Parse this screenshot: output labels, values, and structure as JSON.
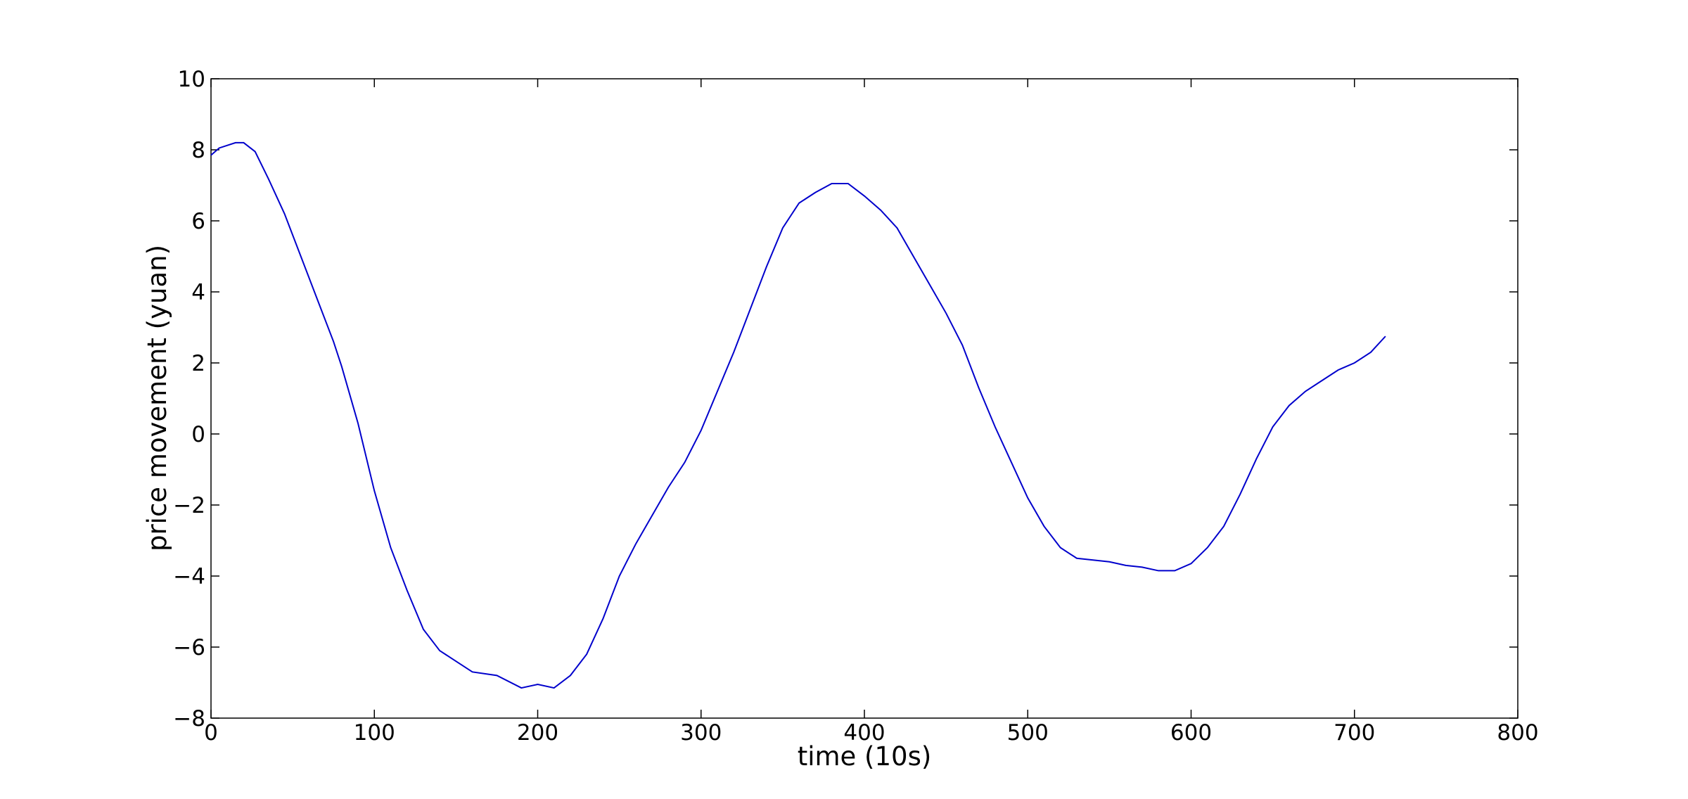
{
  "chart_data": {
    "type": "line",
    "xlabel": "time (10s)",
    "ylabel": "price movement (yuan)",
    "xlim": [
      0,
      800
    ],
    "xticks": [
      0,
      100,
      200,
      300,
      400,
      500,
      600,
      700,
      800
    ],
    "ylim": [
      -8,
      10
    ],
    "yticks": [
      {
        "value": -8,
        "label": "−8"
      },
      {
        "value": -6,
        "label": "−6"
      },
      {
        "value": -4,
        "label": "−4"
      },
      {
        "value": -2,
        "label": "−2"
      },
      0,
      2,
      4,
      6,
      8,
      10
    ],
    "series": [
      {
        "color": "#0000cc",
        "x": [
          0,
          5,
          15,
          20,
          27,
          35,
          45,
          55,
          65,
          75,
          80,
          90,
          100,
          110,
          120,
          130,
          140,
          150,
          160,
          175,
          190,
          200,
          210,
          220,
          230,
          240,
          250,
          260,
          270,
          280,
          290,
          300,
          310,
          320,
          330,
          340,
          350,
          360,
          370,
          380,
          390,
          400,
          410,
          420,
          430,
          440,
          450,
          460,
          470,
          480,
          490,
          500,
          510,
          520,
          530,
          540,
          550,
          560,
          570,
          580,
          590,
          600,
          610,
          620,
          630,
          640,
          650,
          660,
          670,
          680,
          690,
          700,
          710,
          719
        ],
        "values": [
          7.85,
          8.05,
          8.2,
          8.2,
          7.95,
          7.2,
          6.2,
          5.0,
          3.8,
          2.6,
          1.9,
          0.3,
          -1.6,
          -3.2,
          -4.4,
          -5.5,
          -6.1,
          -6.4,
          -6.7,
          -6.8,
          -7.15,
          -7.05,
          -7.15,
          -6.8,
          -6.2,
          -5.2,
          -4.0,
          -3.1,
          -2.3,
          -1.5,
          -0.8,
          0.1,
          1.2,
          2.3,
          3.5,
          4.7,
          5.8,
          6.5,
          6.8,
          7.05,
          7.05,
          6.7,
          6.3,
          5.8,
          5.0,
          4.2,
          3.4,
          2.5,
          1.3,
          0.2,
          -0.8,
          -1.8,
          -2.6,
          -3.2,
          -3.5,
          -3.55,
          -3.6,
          -3.7,
          -3.75,
          -3.85,
          -3.85,
          -3.65,
          -3.2,
          -2.6,
          -1.7,
          -0.7,
          0.2,
          0.8,
          1.2,
          1.5,
          1.8,
          2.0,
          2.3,
          2.75
        ]
      }
    ]
  }
}
